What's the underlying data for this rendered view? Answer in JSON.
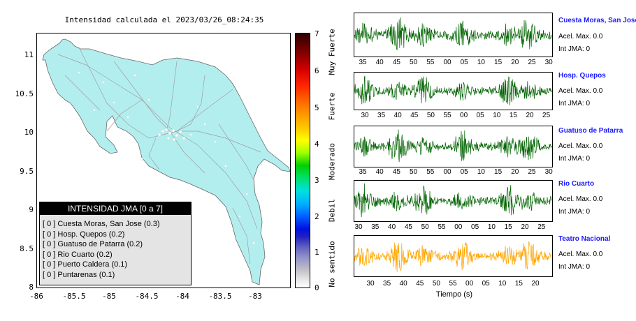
{
  "map": {
    "title": "Intensidad calculada el 2023/03/26_08:24:35",
    "y_labels": [
      "11",
      "10.5",
      "10",
      "9.5",
      "9",
      "8.5",
      "8"
    ],
    "x_labels": [
      "-86",
      "-85.5",
      "-85",
      "-84.5",
      "-84",
      "-83.5",
      "-83"
    ],
    "land_color": "#b3eeef"
  },
  "legend": {
    "header": "INTENSIDAD JMA [0 a 7]",
    "items": [
      "[ 0 ]  Cuesta Moras, San Jose (0.3)",
      "[ 0 ]  Hosp. Quepos (0.2)",
      "[ 0 ]  Guatuso de Patarra (0.2)",
      "[ 0 ]  Rio Cuarto (0.2)",
      "[ 0 ]  Puerto Caldera (0.1)",
      "[ 0 ]  Puntarenas (0.1)"
    ]
  },
  "colorbar": {
    "numbers": [
      "7",
      "6",
      "5",
      "4",
      "3",
      "2",
      "1",
      "0"
    ],
    "words": [
      "Muy Fuerte",
      "Fuerte",
      "Moderado",
      "Debil",
      "No sentido"
    ]
  },
  "stations": [
    {
      "name": "Cuesta Moras, San Jose",
      "acel": "Acel. Max. 0.0",
      "int": "Int JMA: 0",
      "color": "#006400",
      "ticks": [
        "35",
        "40",
        "45",
        "50",
        "55",
        "00",
        "05",
        "10",
        "15",
        "20",
        "25",
        "30"
      ]
    },
    {
      "name": "Hosp. Quepos",
      "acel": "Acel. Max. 0.0",
      "int": "Int JMA: 0",
      "color": "#006400",
      "ticks": [
        "30",
        "35",
        "40",
        "45",
        "50",
        "55",
        "00",
        "05",
        "10",
        "15",
        "20",
        "25"
      ]
    },
    {
      "name": "Guatuso de Patarra",
      "acel": "Acel. Max. 0.0",
      "int": "Int JMA: 0",
      "color": "#006400",
      "ticks": [
        "35",
        "40",
        "45",
        "50",
        "55",
        "00",
        "05",
        "10",
        "15",
        "20",
        "25",
        "30"
      ]
    },
    {
      "name": "Rio Cuarto",
      "acel": "Acel. Max. 0.0",
      "int": "Int JMA: 0",
      "color": "#006400",
      "ticks": [
        "30",
        "35",
        "40",
        "45",
        "50",
        "55",
        "00",
        "05",
        "10",
        "15",
        "20",
        "25"
      ]
    },
    {
      "name": "Teatro Nacional",
      "acel": "Acel. Max. 0.0",
      "int": "Int JMA: 0",
      "color": "#ffa500",
      "ticks": [
        "30",
        "35",
        "40",
        "45",
        "50",
        "55",
        "00",
        "05",
        "10",
        "15",
        "20"
      ]
    }
  ],
  "waveforms": {
    "x_axis_title": "Tiempo (s)"
  }
}
